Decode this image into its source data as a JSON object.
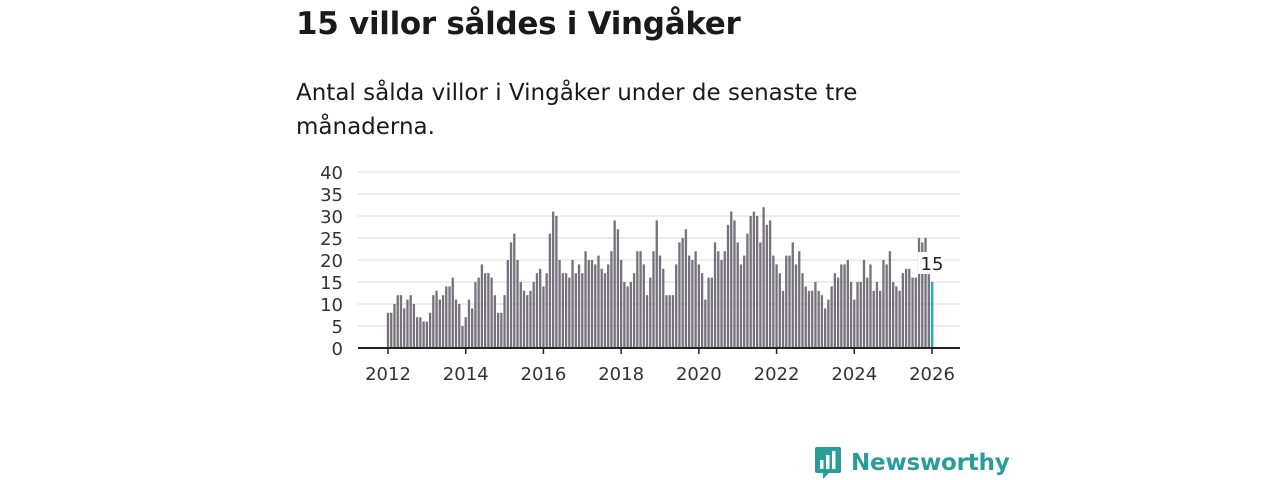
{
  "header": {
    "title": "15 villor såldes i Vingåker",
    "subtitle": "Antal sålda villor i Vingåker under de senaste tre månaderna."
  },
  "chart_data": {
    "type": "bar",
    "title": "15 villor såldes i Vingåker",
    "subtitle": "Antal sålda villor i Vingåker under de senaste tre månaderna.",
    "xlabel": "",
    "ylabel": "",
    "ylim": [
      0,
      40
    ],
    "y_ticks": [
      0,
      5,
      10,
      15,
      20,
      25,
      30,
      35,
      40
    ],
    "x_ticks": [
      2012,
      2014,
      2016,
      2018,
      2020,
      2022,
      2024,
      2026
    ],
    "grid": true,
    "start": "2012-01",
    "end": "2026-01",
    "frequency": "monthly",
    "values": [
      8,
      8,
      10,
      12,
      12,
      9,
      11,
      12,
      10,
      7,
      7,
      6,
      6,
      8,
      12,
      13,
      11,
      12,
      14,
      14,
      16,
      11,
      10,
      5,
      7,
      11,
      9,
      15,
      16,
      19,
      17,
      17,
      16,
      12,
      8,
      8,
      12,
      20,
      24,
      26,
      20,
      15,
      13,
      12,
      13,
      15,
      17,
      18,
      14,
      17,
      26,
      31,
      30,
      20,
      17,
      17,
      16,
      20,
      17,
      19,
      17,
      22,
      20,
      20,
      19,
      21,
      18,
      17,
      19,
      22,
      29,
      27,
      20,
      15,
      14,
      15,
      17,
      22,
      22,
      19,
      12,
      16,
      22,
      29,
      21,
      18,
      12,
      12,
      12,
      19,
      24,
      25,
      27,
      21,
      20,
      22,
      19,
      17,
      11,
      16,
      16,
      24,
      22,
      20,
      22,
      28,
      31,
      29,
      24,
      19,
      21,
      26,
      30,
      31,
      30,
      24,
      32,
      28,
      29,
      21,
      19,
      17,
      13,
      21,
      21,
      24,
      19,
      22,
      17,
      14,
      13,
      13,
      15,
      13,
      12,
      9,
      11,
      14,
      17,
      16,
      19,
      19,
      20,
      15,
      11,
      15,
      15,
      20,
      16,
      19,
      13,
      15,
      13,
      20,
      19,
      22,
      15,
      14,
      13,
      17,
      18,
      18,
      16,
      16,
      25,
      24,
      25,
      17,
      15
    ],
    "highlight": {
      "label": "15",
      "value": 15,
      "color": "#2ab0b0"
    },
    "bar_color": "#76737c"
  },
  "brand": {
    "name": "Newsworthy",
    "icon": "newsworthy-logo-icon",
    "color": "#2a9d9a"
  }
}
